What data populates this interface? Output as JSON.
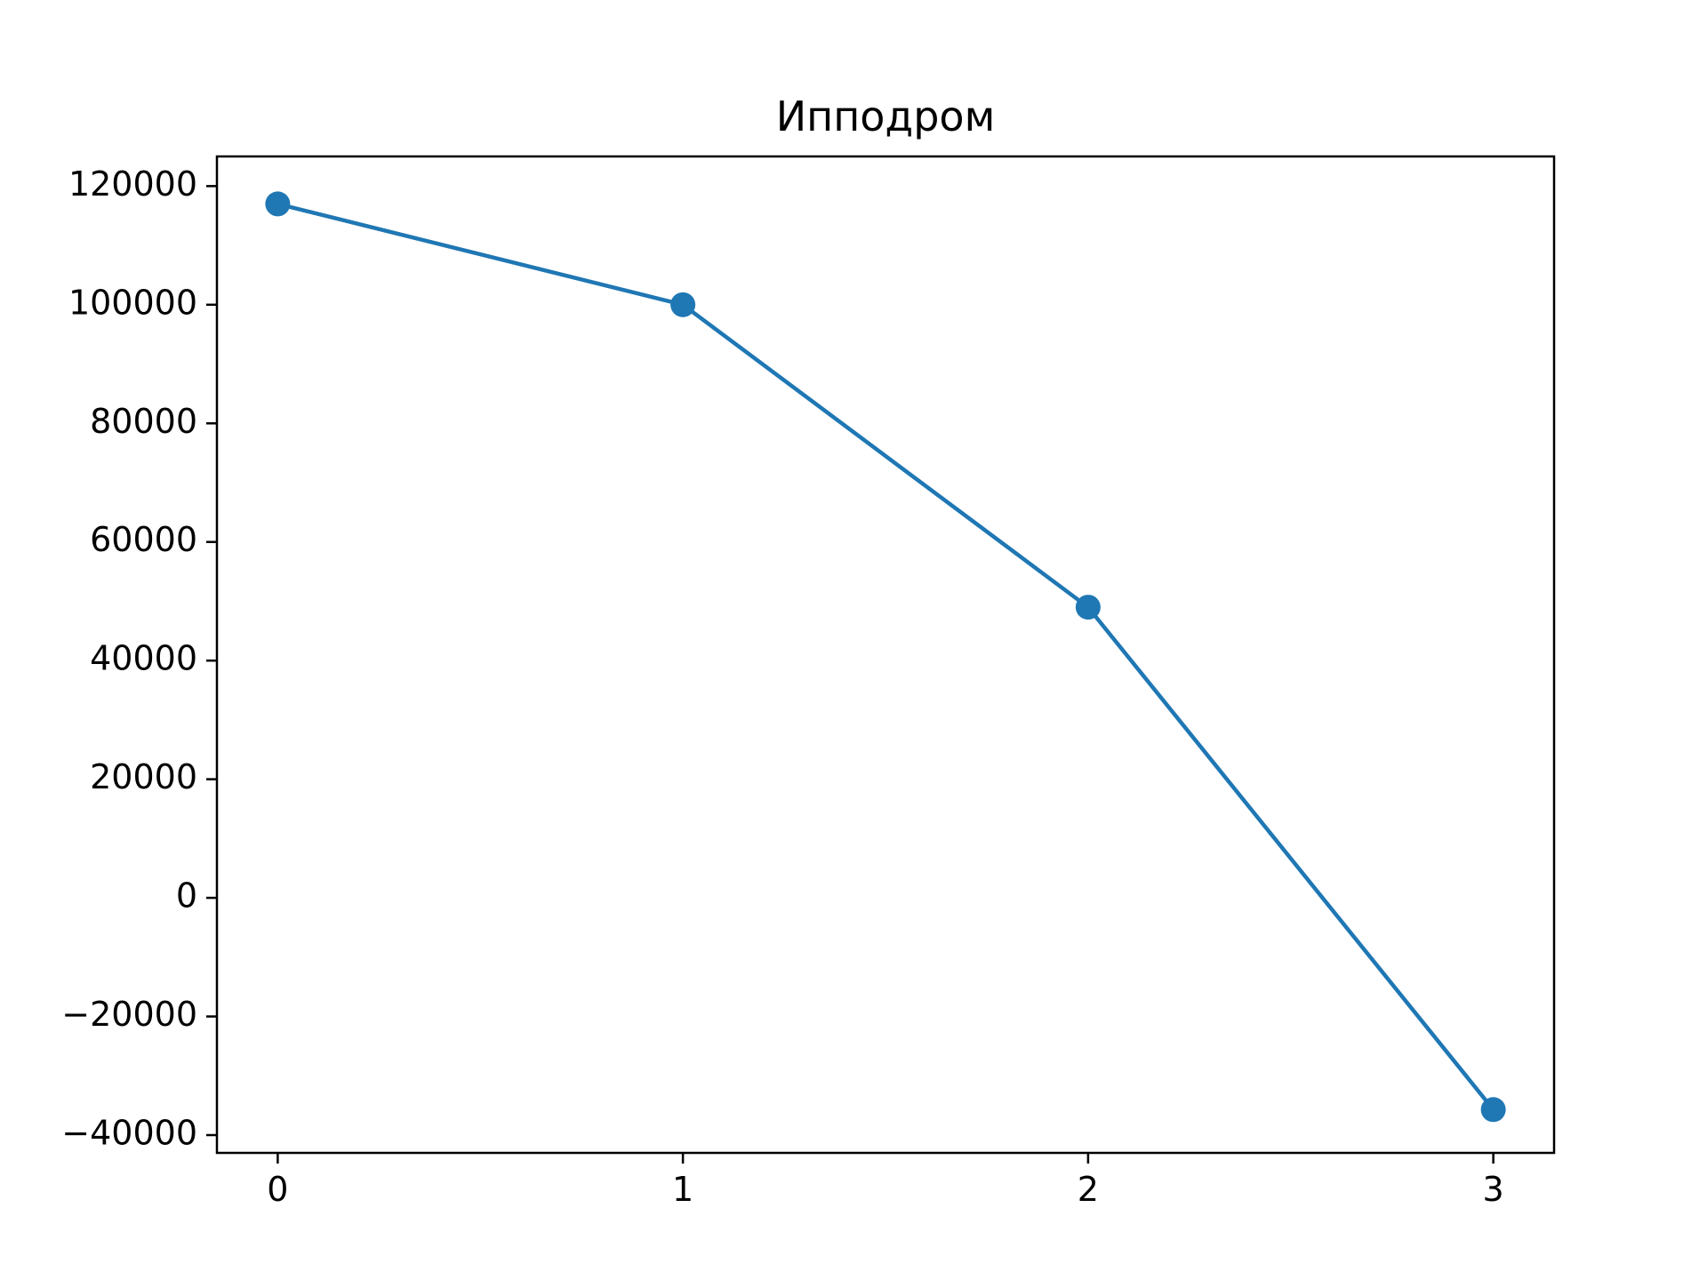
{
  "chart_data": {
    "type": "line",
    "title": "Ипподром",
    "xlabel": "",
    "ylabel": "",
    "x": [
      0,
      1,
      2,
      3
    ],
    "series": [
      {
        "values": [
          117000,
          100000,
          49000,
          -35700
        ]
      }
    ],
    "xticks": [
      0,
      1,
      2,
      3
    ],
    "xtick_labels": [
      "0",
      "1",
      "2",
      "3"
    ],
    "yticks": [
      -40000,
      -20000,
      0,
      20000,
      40000,
      60000,
      80000,
      100000,
      120000
    ],
    "ytick_labels": [
      "−40000",
      "−20000",
      "0",
      "20000",
      "40000",
      "60000",
      "80000",
      "100000",
      "120000"
    ],
    "xlim": [
      -0.15,
      3.15
    ],
    "ylim": [
      -43000,
      125000
    ],
    "grid": false,
    "legend": "none",
    "colors": {
      "series": "#1f77b4",
      "axes": "#000000",
      "background": "#ffffff"
    }
  }
}
